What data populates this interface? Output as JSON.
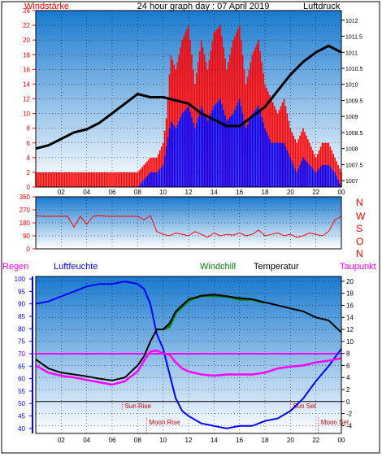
{
  "header": {
    "wind_label": "Windstärke",
    "title": "24 hour graph day : 07 April 2019",
    "pressure_label": "Luftdruck"
  },
  "lower_header": {
    "rain_label": "Regen",
    "humidity_label": "Luftfeuchte",
    "windchill_label": "Windchill",
    "temperature_label": "Temperatur",
    "dewpoint_label": "Taupunkt"
  },
  "direction_letters": [
    "N",
    "W",
    "S",
    "O",
    "N"
  ],
  "events": {
    "sun_rise": "Sun Rise",
    "sun_set": "Sun Set",
    "moon_rise": "Moon Rise",
    "moon_set": "Moon Set"
  },
  "colors": {
    "wind_gust": "#ff0000",
    "wind_avg": "#0000ff",
    "pressure": "#000000",
    "direction": "#ff0000",
    "humidity": "#0000ff",
    "temperature": "#000000",
    "windchill": "#008000",
    "dewpoint": "#ff00ff",
    "rain": "#ff0000",
    "sky_top": "#1a7ad0",
    "sky_bottom": "#ffffff"
  },
  "chart_data": [
    {
      "type": "line",
      "title": "24 hour graph day : 07 April 2019",
      "xlabel": "",
      "x_ticks": [
        "02",
        "04",
        "06",
        "08",
        "10",
        "12",
        "14",
        "16",
        "18",
        "20",
        "22",
        "00"
      ],
      "x_hours": [
        0,
        24
      ],
      "y_left_ticks": [
        0,
        2,
        4,
        6,
        8,
        10,
        12,
        14,
        16,
        18,
        20,
        22,
        24
      ],
      "y_left_label": "Windstärke",
      "y_left_range": [
        0,
        24
      ],
      "y_right_ticks": [
        1007,
        1007.5,
        1008,
        1008.5,
        1009,
        1009.5,
        1010,
        1010.5,
        1011,
        1011.5,
        1012
      ],
      "y_right_label": "Luftdruck",
      "y_right_range": [
        1006.8,
        1012.3
      ],
      "series": [
        {
          "name": "Windstärke",
          "axis": "left",
          "x": [
            0,
            1,
            2,
            3,
            4,
            5,
            6,
            7,
            8,
            8.5,
            9,
            9.5,
            10,
            10.3,
            10.6,
            11,
            11.5,
            12,
            12.5,
            13,
            13.5,
            14,
            14.5,
            15,
            15.5,
            16,
            16.5,
            17,
            17.5,
            18,
            18.5,
            19,
            19.5,
            20,
            20.5,
            21,
            21.5,
            22,
            22.5,
            23,
            23.5,
            24
          ],
          "gust": [
            2,
            2,
            2,
            2,
            2,
            2,
            2,
            2,
            2,
            3,
            4,
            4,
            6,
            10,
            18,
            16,
            20,
            22,
            14,
            20,
            16,
            21,
            22,
            16,
            20,
            22,
            14,
            18,
            20,
            14,
            12,
            10,
            12,
            8,
            6,
            8,
            6,
            4,
            6,
            6,
            4,
            2
          ],
          "values": [
            0,
            0,
            0,
            0,
            0,
            0,
            0,
            0,
            0,
            1,
            2,
            2,
            3,
            6,
            9,
            8,
            10,
            11,
            8,
            11,
            9,
            11,
            12,
            9,
            10,
            12,
            8,
            10,
            11,
            8,
            6,
            6,
            6,
            4,
            2,
            4,
            3,
            2,
            3,
            3,
            2,
            0
          ]
        },
        {
          "name": "Luftdruck",
          "axis": "right",
          "x": [
            0,
            1,
            2,
            3,
            4,
            5,
            6,
            7,
            8,
            9,
            10,
            11,
            12,
            13,
            14,
            15,
            16,
            17,
            18,
            19,
            20,
            21,
            22,
            23,
            24
          ],
          "values": [
            1008.0,
            1008.1,
            1008.3,
            1008.5,
            1008.6,
            1008.8,
            1009.1,
            1009.4,
            1009.7,
            1009.6,
            1009.6,
            1009.5,
            1009.4,
            1009.1,
            1008.9,
            1008.7,
            1008.7,
            1009.0,
            1009.3,
            1009.8,
            1010.3,
            1010.7,
            1011.0,
            1011.2,
            1011.0
          ]
        }
      ]
    },
    {
      "type": "scatter",
      "title": "",
      "xlabel": "",
      "y_ticks": [
        0,
        90,
        180,
        270,
        360
      ],
      "y_range": [
        0,
        360
      ],
      "series": [
        {
          "name": "",
          "x": [
            0,
            0.5,
            1,
            1.5,
            2,
            2.5,
            3,
            3.5,
            4,
            4.5,
            5,
            5.5,
            6,
            6.5,
            7,
            7.5,
            8,
            8.5,
            9,
            9.5,
            10,
            10.5,
            11,
            11.5,
            12,
            12.5,
            13,
            13.5,
            14,
            14.5,
            15,
            15.5,
            16,
            16.5,
            17,
            17.5,
            18,
            18.5,
            19,
            19.5,
            20,
            20.5,
            21,
            21.5,
            22,
            22.5,
            23,
            23.5,
            24
          ],
          "values": [
            230,
            225,
            225,
            225,
            225,
            225,
            150,
            225,
            170,
            225,
            230,
            225,
            225,
            225,
            225,
            225,
            225,
            200,
            230,
            120,
            100,
            90,
            110,
            100,
            90,
            120,
            100,
            80,
            110,
            90,
            100,
            95,
            110,
            90,
            100,
            130,
            90,
            100,
            110,
            90,
            100,
            80,
            90,
            110,
            100,
            90,
            120,
            200,
            225
          ]
        }
      ]
    },
    {
      "type": "line",
      "title": "",
      "xlabel": "",
      "y_left_ticks": [
        40,
        45,
        50,
        55,
        60,
        65,
        70,
        75,
        80,
        85,
        90,
        95,
        100
      ],
      "y_left_label": "Luftfeuchte",
      "y_left_range": [
        38,
        101
      ],
      "y_right_ticks": [
        -4,
        -2,
        0,
        2,
        4,
        6,
        8,
        10,
        12,
        14,
        16,
        18,
        20
      ],
      "y_right_label": "Temperatur",
      "y_right_range": [
        -5.3,
        20.8
      ],
      "rain_axis_tick": "0",
      "series": [
        {
          "name": "Luftfeuchte",
          "axis": "left",
          "x": [
            0,
            1,
            2,
            3,
            4,
            5,
            6,
            7,
            8,
            8.5,
            9,
            9.5,
            10,
            10.5,
            11,
            11.5,
            12,
            13,
            14,
            15,
            16,
            17,
            18,
            19,
            20,
            21,
            22,
            23,
            24
          ],
          "values": [
            90,
            91,
            93,
            95,
            97,
            98,
            98,
            99,
            98,
            96,
            90,
            78,
            72,
            62,
            52,
            47,
            45,
            42,
            41,
            40,
            41,
            41,
            43,
            44,
            47,
            52,
            59,
            65,
            72
          ]
        },
        {
          "name": "Temperatur",
          "axis": "right",
          "x": [
            0,
            1,
            2,
            3,
            4,
            5,
            6,
            7,
            8,
            8.5,
            9,
            9.5,
            10,
            10.5,
            11,
            11.5,
            12,
            13,
            14,
            15,
            16,
            17,
            18,
            19,
            20,
            21,
            22,
            23,
            24
          ],
          "values": [
            7,
            5.5,
            4.8,
            4.5,
            4.2,
            3.8,
            3.5,
            4,
            6,
            7.5,
            10,
            12,
            12,
            13,
            15,
            16,
            17,
            17.6,
            17.8,
            17.5,
            17.2,
            17,
            16.5,
            16,
            15.5,
            15,
            14,
            13.5,
            11.5
          ]
        },
        {
          "name": "Windchill",
          "axis": "right",
          "x": [
            10,
            10.5,
            11,
            11.5,
            12,
            13,
            14,
            15,
            16,
            17,
            18
          ],
          "values": [
            12,
            12.5,
            14.8,
            15.8,
            16.8,
            17.6,
            17.6,
            17.5,
            17.0,
            17.0,
            16.4
          ]
        },
        {
          "name": "Taupunkt",
          "axis": "right",
          "x": [
            0,
            1,
            2,
            3,
            4,
            5,
            6,
            7,
            8,
            8.5,
            9,
            9.5,
            10,
            10.5,
            11,
            11.5,
            12,
            13,
            14,
            15,
            16,
            17,
            18,
            19,
            20,
            21,
            22,
            23,
            24
          ],
          "values": [
            6,
            4.8,
            4.3,
            4,
            3.6,
            3.2,
            2.8,
            3.4,
            5,
            6.8,
            8.3,
            8.5,
            8,
            7.8,
            6.5,
            5.5,
            5,
            4.5,
            4.3,
            4.5,
            4.5,
            4.5,
            4.8,
            5.5,
            5.8,
            6,
            6.5,
            6.8,
            7.2
          ]
        },
        {
          "name": "Regen",
          "axis": "rain",
          "x": [
            0,
            24
          ],
          "values": [
            0,
            0
          ]
        }
      ],
      "events": [
        {
          "label": "Sun Rise",
          "hour": 6.8
        },
        {
          "label": "Sun Set",
          "hour": 20.0
        },
        {
          "label": "Moon Rise",
          "hour": 8.7
        },
        {
          "label": "Moon Set",
          "hour": 22.2
        }
      ]
    }
  ]
}
